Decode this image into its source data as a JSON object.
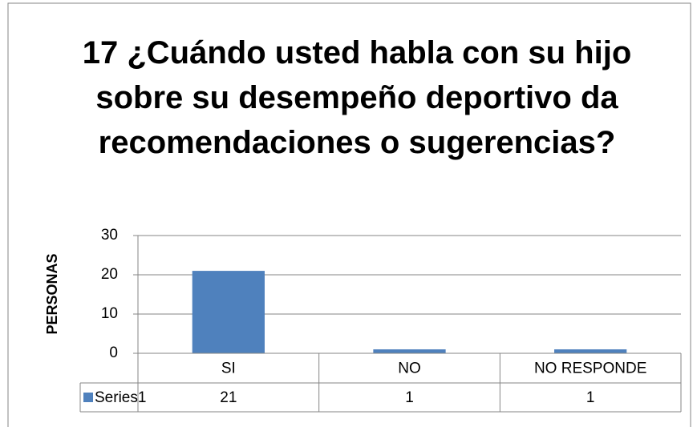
{
  "chart_data": {
    "type": "bar",
    "title": "17 ¿Cuándo usted habla con su hijo sobre su desempeño deportivo da recomendaciones o sugerencias?",
    "y_label": "PERSONAS",
    "categories": [
      "SI",
      "NO",
      "NO RESPONDE"
    ],
    "series": [
      {
        "name": "Series1",
        "color": "#4f81bd",
        "values": [
          21,
          1,
          1
        ]
      }
    ],
    "ylim": [
      0,
      30
    ],
    "yticks": [
      0,
      10,
      20,
      30
    ],
    "grid": true,
    "data_table": true
  }
}
